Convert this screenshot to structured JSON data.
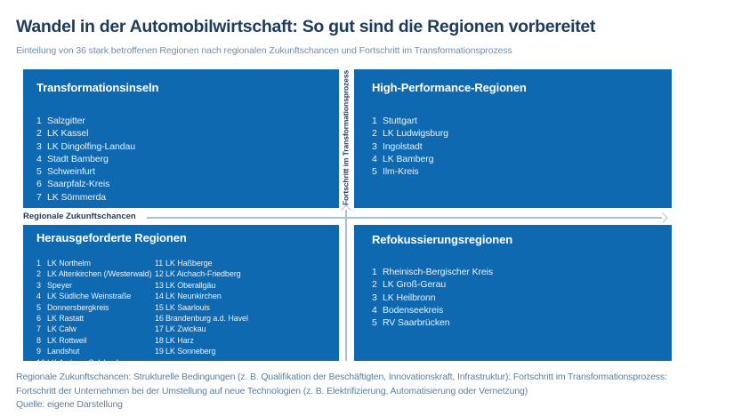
{
  "header": {
    "title": "Wandel in der Automobilwirtschaft: So gut sind die Regionen vorbereitet",
    "subtitle": "Einteilung von 36 stark betroffenen Regionen nach regionalen Zukunftschancen und Fortschritt im Transformationsprozess"
  },
  "chart_data": {
    "type": "table",
    "subtype": "2x2-quadrant-matrix",
    "title": "Wandel in der Automobilwirtschaft: So gut sind die Regionen vorbereitet",
    "xlabel": "Regionale Zukunftschancen",
    "ylabel": "Fortschritt im Transformationsprozess",
    "region_count": 36,
    "quadrants": [
      {
        "position": "top-left",
        "title": "Transformationsinseln",
        "regions": [
          "Salzgitter",
          "LK Kassel",
          "LK Dingolfing-Landau",
          "Stadt Bamberg",
          "Schweinfurt",
          "Saarpfalz-Kreis",
          "LK  Sömmerda"
        ]
      },
      {
        "position": "top-right",
        "title": "High-Performance-Regionen",
        "regions": [
          "Stuttgart",
          "LK Ludwigsburg",
          "Ingolstadt",
          "LK Bamberg",
          "Ilm-Kreis"
        ]
      },
      {
        "position": "bottom-left",
        "title": "Herausgeforderte Regionen",
        "regions_col1": [
          "LK Northelm",
          "LK Altenkirchen (/Westerwald)",
          "Speyer",
          "LK Südliche Weinstraße",
          "Donnersbergkreis",
          "LK Rastatt",
          "LK Calw",
          "LK  Rottweil",
          "Landshut",
          "LK Amberg-Sulzbach"
        ],
        "regions_col2": [
          "LK Haßberge",
          "LK Aichach-Friedberg",
          "LK Oberallgäu",
          "LK Neunkirchen",
          "LK Saarlouis",
          "Brandenburg a.d. Havel",
          "LK Zwickau",
          "LK Harz",
          "LK Sonneberg"
        ]
      },
      {
        "position": "bottom-right",
        "title": "Refokussierungsregionen",
        "regions": [
          "Rheinisch-Bergischer Kreis",
          "LK Groß-Gerau",
          "LK Heilbronn",
          "Bodenseekreis",
          "RV Saarbrücken"
        ]
      }
    ]
  },
  "footer": {
    "line1": "Regionale Zukunftschancen: Strukturelle Bedingungen (z. B. Qualifikation der Beschäftigten, Innovationskraft, Infrastruktur); Fortschritt im  Transformationsprozess:",
    "line2": "Fortschritt der Unternehmen bei der Umstellung auf neue Technologien (z. B. Elektrifizierung, Automatisierung oder Vernetzung)",
    "source": "Quelle: eigene Darstellung"
  },
  "colors": {
    "blue": "#0e69b0",
    "navy": "#1d3c5e",
    "muted": "#6e8fae",
    "footer": "#5d7f9e",
    "line": "#a9c2d8",
    "list": "#e8f1fa"
  }
}
